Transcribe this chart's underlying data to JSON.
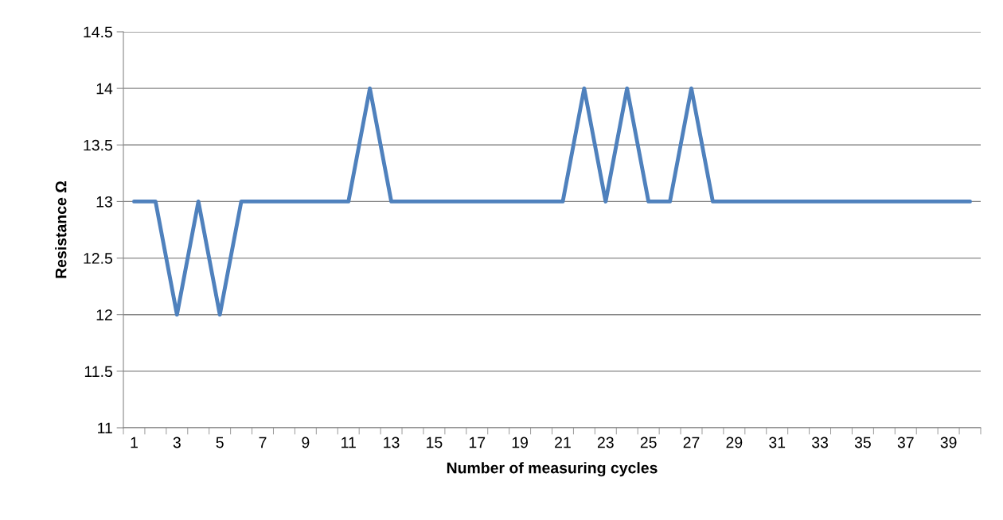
{
  "chart_data": {
    "type": "line",
    "xlabel": "Number of measuring cycles",
    "ylabel": "Resistance Ω",
    "categories": [
      "1",
      null,
      "3",
      null,
      "5",
      null,
      "7",
      null,
      "9",
      null,
      "11",
      null,
      "13",
      null,
      "15",
      null,
      "17",
      null,
      "19",
      null,
      "21",
      null,
      "23",
      null,
      "25",
      null,
      "27",
      null,
      "29",
      null,
      "31",
      null,
      "33",
      null,
      "35",
      null,
      "37",
      null,
      "39",
      null
    ],
    "series": [
      {
        "color": "#4f81bd",
        "values": [
          13,
          13,
          12,
          13,
          12,
          13,
          13,
          13,
          13,
          13,
          13,
          14,
          13,
          13,
          13,
          13,
          13,
          13,
          13,
          13,
          13,
          14,
          13,
          14,
          13,
          13,
          14,
          13,
          13,
          13,
          13,
          13,
          13,
          13,
          13,
          13,
          13,
          13,
          13,
          13
        ]
      }
    ],
    "ylim": [
      11,
      14.5
    ],
    "yticks": [
      11,
      11.5,
      12,
      12.5,
      13,
      13.5,
      14,
      14.5
    ],
    "grid": "y"
  }
}
